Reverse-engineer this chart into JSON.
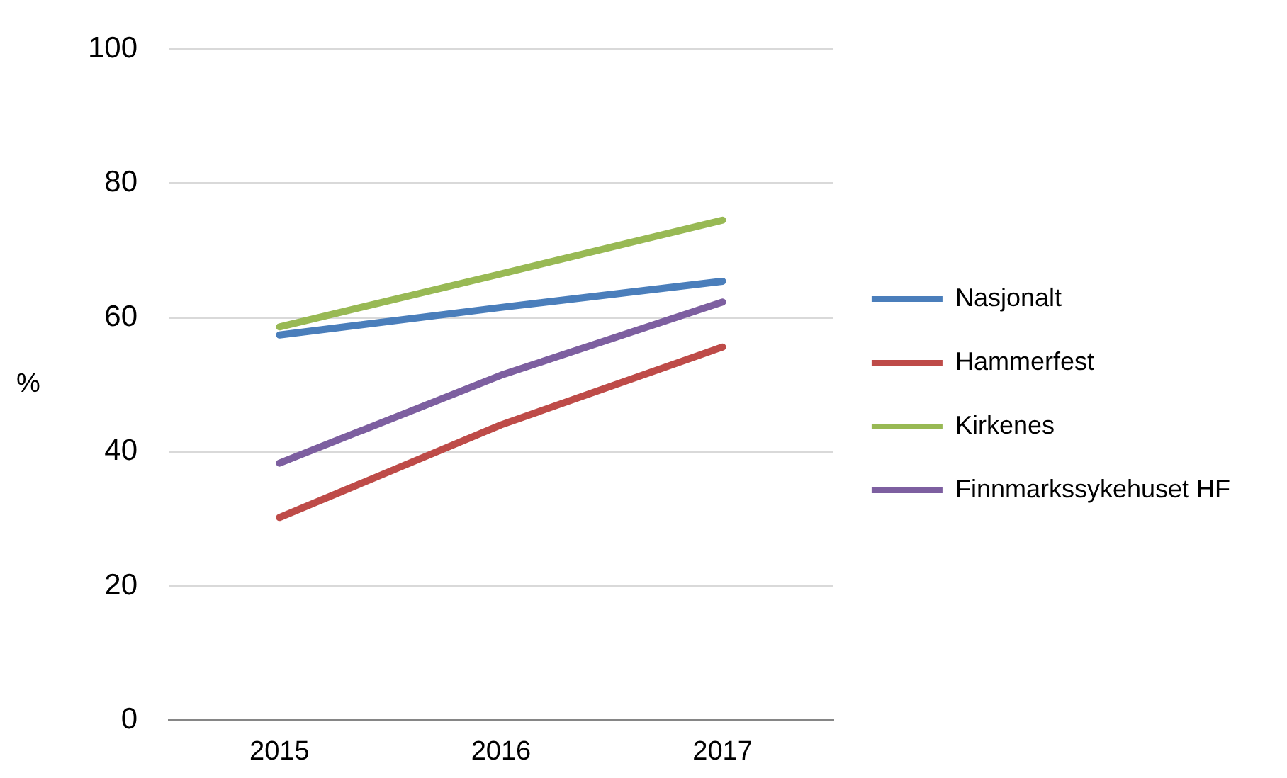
{
  "chart_data": {
    "type": "line",
    "ylabel": "%",
    "categories": [
      "2015",
      "2016",
      "2017"
    ],
    "series": [
      {
        "name": "Nasjonalt",
        "color": "#4a7ebb",
        "values": [
          57.4,
          61.5,
          65.4
        ]
      },
      {
        "name": "Hammerfest",
        "color": "#be4b48",
        "values": [
          30.2,
          44,
          55.6
        ]
      },
      {
        "name": "Kirkenes",
        "color": "#98b954",
        "values": [
          58.6,
          66.5,
          74.5
        ]
      },
      {
        "name": "Finnmarkssykehuset HF",
        "color": "#7d5fa0",
        "values": [
          38.3,
          51.4,
          62.3
        ]
      }
    ],
    "ylim": [
      0,
      100
    ],
    "yticks": [
      0,
      20,
      40,
      60,
      80,
      100
    ],
    "grid": "y",
    "legend": "right",
    "marker": "none",
    "line_style": "solid"
  }
}
